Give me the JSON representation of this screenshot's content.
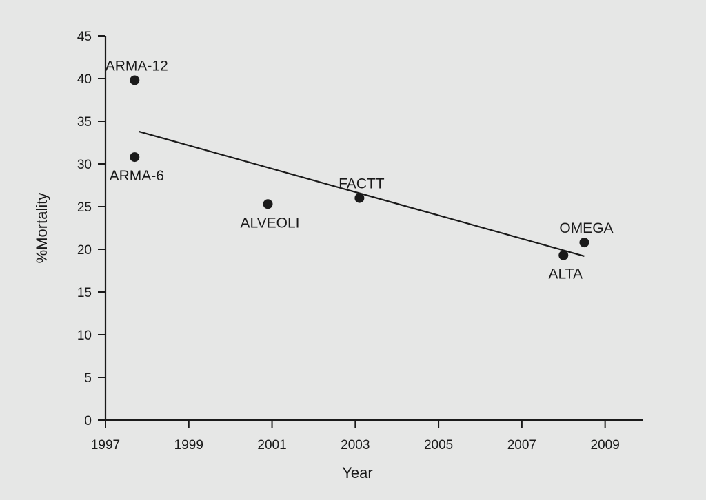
{
  "chart_data": {
    "type": "scatter",
    "xlabel": "Year",
    "ylabel": "%Mortality",
    "xlim": [
      1997,
      2009.9
    ],
    "ylim": [
      0,
      45
    ],
    "x_ticks": [
      1997,
      1999,
      2001,
      2003,
      2005,
      2007,
      2009
    ],
    "y_ticks": [
      0,
      5,
      10,
      15,
      20,
      25,
      30,
      35,
      40,
      45
    ],
    "grid": false,
    "points": [
      {
        "label": "ARMA-12",
        "x": 1997.7,
        "y": 39.8,
        "label_pos": "above"
      },
      {
        "label": "ARMA-6",
        "x": 1997.7,
        "y": 30.8,
        "label_pos": "below"
      },
      {
        "label": "ALVEOLI",
        "x": 2000.9,
        "y": 25.3,
        "label_pos": "below"
      },
      {
        "label": "FACTT",
        "x": 2003.1,
        "y": 26.0,
        "label_pos": "above"
      },
      {
        "label": "OMEGA",
        "x": 2008.5,
        "y": 20.8,
        "label_pos": "above"
      },
      {
        "label": "ALTA",
        "x": 2008.0,
        "y": 19.3,
        "label_pos": "below"
      }
    ],
    "trendline": {
      "x": [
        1997.8,
        2008.5
      ],
      "y": [
        33.8,
        19.2
      ]
    }
  },
  "colors": {
    "background": "#e6e7e6",
    "ink": "#1a1a1a"
  }
}
